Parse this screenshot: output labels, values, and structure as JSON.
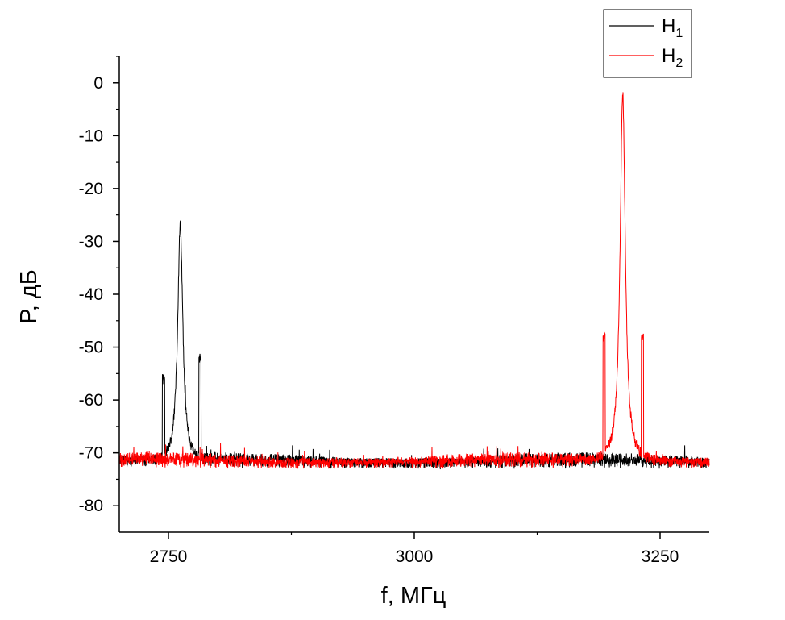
{
  "chart_data": {
    "type": "line",
    "title": "",
    "xlabel": "f, МГц",
    "ylabel": "P, дБ",
    "xlim": [
      2700,
      3300
    ],
    "ylim": [
      -85,
      5
    ],
    "x_ticks": [
      2750,
      3000,
      3250
    ],
    "x_tick_labels": [
      "2750",
      "3000",
      "3250"
    ],
    "x_minor_ticks": [
      2875,
      3125
    ],
    "y_ticks": [
      0,
      -10,
      -20,
      -30,
      -40,
      -50,
      -60,
      -70,
      -80
    ],
    "y_tick_labels": [
      "0",
      "-10",
      "-20",
      "-30",
      "-40",
      "-50",
      "-60",
      "-70",
      "-80"
    ],
    "noise_floor_db": -72,
    "noise_amplitude_db": 1.5,
    "grid": false,
    "legend_position": "top-right",
    "series": [
      {
        "name": "H",
        "subscript": "1",
        "color": "#000000",
        "peaks": [
          {
            "f": 2745,
            "p": -57
          },
          {
            "f": 2762,
            "p": -27
          },
          {
            "f": 2766,
            "p": -59
          },
          {
            "f": 2782,
            "p": -53
          }
        ]
      },
      {
        "name": "H",
        "subscript": "2",
        "color": "#ff0000",
        "peaks": [
          {
            "f": 3193,
            "p": -49
          },
          {
            "f": 3212,
            "p": -2
          },
          {
            "f": 3232,
            "p": -49
          }
        ]
      }
    ]
  }
}
